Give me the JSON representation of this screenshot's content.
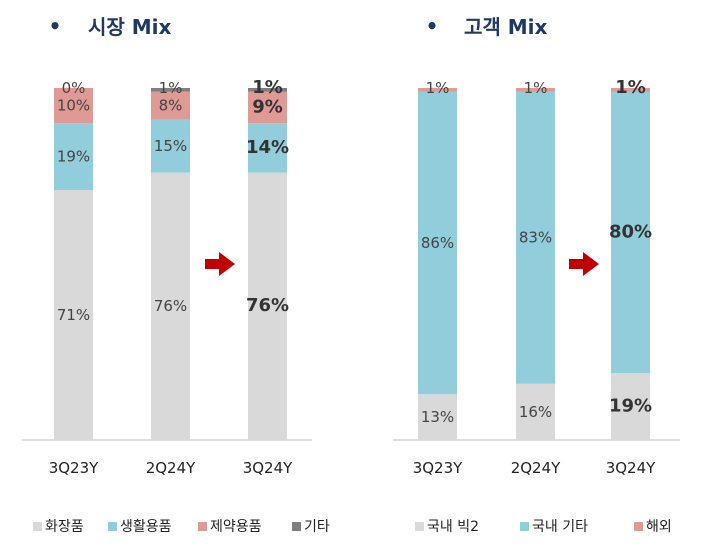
{
  "chart_data": [
    {
      "type": "bar",
      "stacked": true,
      "normalized": true,
      "title": "시장 Mix",
      "categories": [
        "3Q23Y",
        "2Q24Y",
        "3Q24Y"
      ],
      "highlight_category": "3Q24Y",
      "series": [
        {
          "name": "화장품",
          "values": [
            71,
            76,
            76
          ],
          "labels": [
            "71%",
            "76%",
            "76%"
          ],
          "color": "#d9d9d9"
        },
        {
          "name": "생활용품",
          "values": [
            19,
            15,
            14
          ],
          "labels": [
            "19%",
            "15%",
            "14%"
          ],
          "color": "#92cddc"
        },
        {
          "name": "제약용품",
          "values": [
            10,
            8,
            9
          ],
          "labels": [
            "10%",
            "8%",
            "9%"
          ],
          "color": "#e09a96"
        },
        {
          "name": "기타",
          "values": [
            0,
            1,
            1
          ],
          "labels": [
            "0%",
            "1%",
            "1%"
          ],
          "color": "#7f7f7f"
        }
      ],
      "legend_position": "bottom"
    },
    {
      "type": "bar",
      "stacked": true,
      "normalized": true,
      "title": "고객 Mix",
      "categories": [
        "3Q23Y",
        "2Q24Y",
        "3Q24Y"
      ],
      "highlight_category": "3Q24Y",
      "series": [
        {
          "name": "국내 빅2",
          "values": [
            13,
            16,
            19
          ],
          "labels": [
            "13%",
            "16%",
            "19%"
          ],
          "color": "#d9d9d9"
        },
        {
          "name": "국내 기타",
          "values": [
            86,
            83,
            80
          ],
          "labels": [
            "86%",
            "83%",
            "80%"
          ],
          "color": "#92cddc"
        },
        {
          "name": "해외",
          "values": [
            1,
            1,
            1
          ],
          "labels": [
            "1%",
            "1%",
            "1%"
          ],
          "color": "#e09a96"
        }
      ],
      "legend_position": "bottom"
    }
  ],
  "colors": {
    "title": "#1f3864",
    "arrow": "#c00000",
    "axis": "#bfbfbf"
  }
}
